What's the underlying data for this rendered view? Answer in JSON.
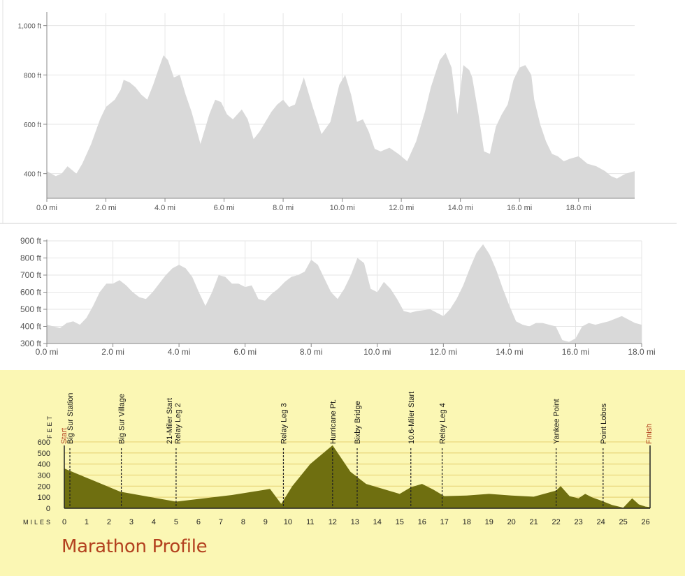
{
  "chart_data": [
    {
      "type": "area",
      "x_unit": "mi",
      "y_unit": "ft",
      "ylim": [
        300,
        1050
      ],
      "xlim": [
        0,
        19.9
      ],
      "ytick_labels": [
        "400 ft",
        "600 ft",
        "800 ft",
        "1,000 ft"
      ],
      "ytick_values": [
        400,
        600,
        800,
        1000
      ],
      "xtick_labels": [
        "0.0 mi",
        "2.0 mi",
        "4.0 mi",
        "6.0 mi",
        "8.0 mi",
        "10.0 mi",
        "12.0 mi",
        "14.0 mi",
        "16.0 mi",
        "18.0 mi"
      ],
      "xtick_values": [
        0,
        2,
        4,
        6,
        8,
        10,
        12,
        14,
        16,
        18
      ],
      "grid": true,
      "fill_color": "#d9d9d9",
      "x": [
        0,
        0.3,
        0.5,
        0.7,
        1.0,
        1.2,
        1.5,
        1.8,
        2.0,
        2.3,
        2.5,
        2.6,
        2.8,
        3.0,
        3.2,
        3.4,
        3.6,
        3.8,
        3.95,
        4.1,
        4.3,
        4.5,
        4.7,
        4.9,
        5.2,
        5.5,
        5.7,
        5.9,
        6.1,
        6.3,
        6.6,
        6.8,
        7.0,
        7.2,
        7.4,
        7.6,
        7.8,
        8.0,
        8.2,
        8.4,
        8.7,
        9.0,
        9.3,
        9.6,
        9.9,
        10.1,
        10.3,
        10.5,
        10.7,
        10.9,
        11.1,
        11.3,
        11.6,
        11.9,
        12.2,
        12.5,
        12.8,
        13.0,
        13.3,
        13.5,
        13.7,
        13.9,
        14.1,
        14.3,
        14.4,
        14.6,
        14.8,
        15.0,
        15.2,
        15.4,
        15.6,
        15.8,
        16.0,
        16.2,
        16.4,
        16.5,
        16.7,
        16.9,
        17.1,
        17.3,
        17.5,
        17.7,
        18.0,
        18.3,
        18.6,
        18.9,
        19.1,
        19.3,
        19.6,
        19.9
      ],
      "values": [
        410,
        390,
        400,
        430,
        400,
        440,
        520,
        620,
        670,
        700,
        740,
        780,
        770,
        750,
        720,
        700,
        760,
        830,
        880,
        860,
        790,
        800,
        720,
        650,
        520,
        640,
        700,
        690,
        640,
        620,
        660,
        620,
        540,
        570,
        610,
        650,
        680,
        700,
        670,
        680,
        790,
        670,
        560,
        610,
        760,
        800,
        720,
        610,
        620,
        570,
        500,
        490,
        505,
        480,
        450,
        530,
        650,
        750,
        860,
        890,
        830,
        640,
        840,
        820,
        790,
        650,
        490,
        480,
        590,
        640,
        680,
        780,
        830,
        840,
        800,
        700,
        600,
        530,
        480,
        470,
        450,
        460,
        470,
        440,
        430,
        410,
        390,
        380,
        400,
        410
      ]
    },
    {
      "type": "area",
      "x_unit": "mi",
      "y_unit": "ft",
      "ylim": [
        300,
        900
      ],
      "xlim": [
        0,
        18.0
      ],
      "ytick_labels": [
        "300 ft",
        "400 ft",
        "500 ft",
        "600 ft",
        "700 ft",
        "800 ft",
        "900 ft"
      ],
      "ytick_values": [
        300,
        400,
        500,
        600,
        700,
        800,
        900
      ],
      "xtick_labels": [
        "0.0 mi",
        "2.0 mi",
        "4.0 mi",
        "6.0 mi",
        "8.0 mi",
        "10.0 mi",
        "12.0 mi",
        "14.0 mi",
        "16.0 mi",
        "18.0 mi"
      ],
      "xtick_values": [
        0,
        2,
        4,
        6,
        8,
        10,
        12,
        14,
        16,
        18
      ],
      "grid": true,
      "fill_color": "#d9d9d9",
      "x": [
        0,
        0.2,
        0.4,
        0.6,
        0.8,
        1.0,
        1.2,
        1.4,
        1.6,
        1.8,
        2.0,
        2.2,
        2.4,
        2.6,
        2.8,
        3.0,
        3.2,
        3.4,
        3.6,
        3.8,
        4.0,
        4.2,
        4.4,
        4.6,
        4.8,
        5.0,
        5.2,
        5.4,
        5.6,
        5.8,
        6.0,
        6.2,
        6.4,
        6.6,
        6.8,
        7.0,
        7.2,
        7.4,
        7.6,
        7.8,
        8.0,
        8.2,
        8.4,
        8.6,
        8.8,
        9.0,
        9.2,
        9.4,
        9.6,
        9.8,
        10.0,
        10.2,
        10.4,
        10.6,
        10.8,
        11.0,
        11.2,
        11.6,
        12.0,
        12.2,
        12.4,
        12.6,
        12.8,
        13.0,
        13.2,
        13.4,
        13.6,
        13.8,
        14.0,
        14.2,
        14.4,
        14.6,
        14.8,
        15.0,
        15.2,
        15.4,
        15.6,
        15.8,
        16.0,
        16.2,
        16.4,
        16.6,
        16.8,
        17.0,
        17.4,
        17.8,
        18.0
      ],
      "values": [
        410,
        400,
        390,
        420,
        430,
        410,
        450,
        520,
        600,
        650,
        650,
        670,
        640,
        600,
        570,
        560,
        600,
        650,
        700,
        740,
        760,
        740,
        690,
        600,
        520,
        600,
        700,
        690,
        650,
        650,
        630,
        640,
        560,
        550,
        590,
        620,
        660,
        690,
        700,
        720,
        790,
        760,
        680,
        600,
        560,
        620,
        700,
        800,
        770,
        620,
        600,
        660,
        620,
        560,
        490,
        480,
        490,
        500,
        460,
        500,
        560,
        640,
        740,
        830,
        880,
        820,
        730,
        620,
        520,
        430,
        410,
        400,
        420,
        420,
        410,
        400,
        320,
        310,
        330,
        400,
        420,
        410,
        420,
        430,
        460,
        420,
        410
      ]
    },
    {
      "type": "area",
      "title": "Marathon Profile",
      "ylabel": "FEET",
      "xlabel": "MILES",
      "ylim": [
        0,
        650
      ],
      "xlim": [
        0,
        26.2
      ],
      "ytick_labels": [
        "0",
        "100",
        "200",
        "300",
        "400",
        "500",
        "600"
      ],
      "ytick_values": [
        0,
        100,
        200,
        300,
        400,
        500,
        600
      ],
      "xtick_labels": [
        "0",
        "1",
        "2",
        "3",
        "4",
        "5",
        "6",
        "7",
        "8",
        "9",
        "10",
        "11",
        "12",
        "13",
        "14",
        "15",
        "16",
        "17",
        "18",
        "19",
        "20",
        "21",
        "22",
        "23",
        "24",
        "25",
        "26"
      ],
      "xtick_values": [
        0,
        1,
        2,
        3,
        4,
        5,
        6,
        7,
        8,
        9,
        10,
        11,
        12,
        13,
        14,
        15,
        16,
        17,
        18,
        19,
        20,
        21,
        22,
        23,
        24,
        25,
        26
      ],
      "grid": true,
      "fill_color": "#6f6f10",
      "background": "#fbf7b4",
      "grid_color": "#e8d67a",
      "accent_color": "#b3411f",
      "x": [
        0,
        2.5,
        5,
        7.5,
        9.2,
        9.7,
        10.2,
        11.0,
        12.0,
        12.8,
        13.5,
        14.5,
        15.0,
        15.5,
        16.0,
        16.5,
        17.0,
        18.0,
        19.0,
        20.0,
        21.0,
        22.0,
        22.2,
        22.6,
        23.0,
        23.3,
        23.6,
        24.0,
        24.5,
        25.0,
        25.4,
        25.7,
        26.0,
        26.2
      ],
      "values": [
        360,
        150,
        60,
        120,
        175,
        40,
        200,
        400,
        570,
        330,
        220,
        160,
        130,
        190,
        220,
        170,
        110,
        115,
        130,
        115,
        105,
        160,
        200,
        110,
        90,
        130,
        100,
        70,
        30,
        5,
        90,
        35,
        15,
        10
      ],
      "annotations": [
        {
          "mile": 0.25,
          "labels": [
            "Big Sur Station"
          ]
        },
        {
          "mile": 2.55,
          "labels": [
            "Big Sur Village"
          ]
        },
        {
          "mile": 5.0,
          "labels": [
            "21-Miler Start",
            "Relay Leg 2"
          ]
        },
        {
          "mile": 9.8,
          "labels": [
            "Relay Leg 3"
          ]
        },
        {
          "mile": 12.0,
          "labels": [
            "Hurricane Pt."
          ]
        },
        {
          "mile": 13.1,
          "labels": [
            "Bixby Bridge"
          ]
        },
        {
          "mile": 15.5,
          "labels": [
            "10.6-Miler Start"
          ]
        },
        {
          "mile": 16.9,
          "labels": [
            "Relay Leg 4"
          ]
        },
        {
          "mile": 22.0,
          "labels": [
            "Yankee Point"
          ]
        },
        {
          "mile": 24.1,
          "labels": [
            "Point Lobos"
          ]
        }
      ],
      "start_label": "Start",
      "finish_label": "Finish"
    }
  ]
}
